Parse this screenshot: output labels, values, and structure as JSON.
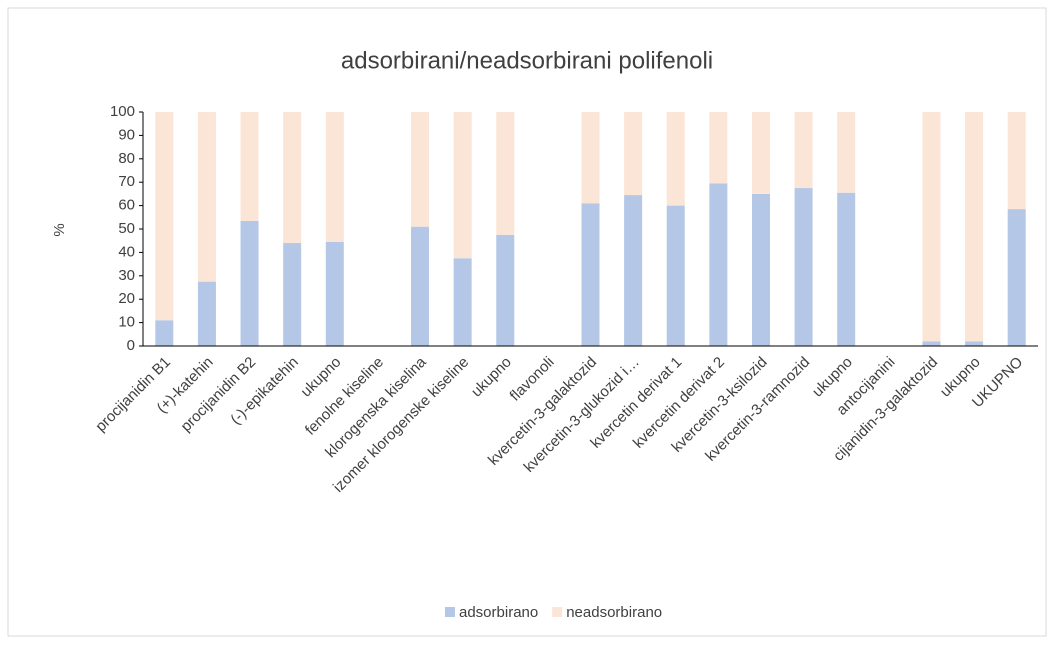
{
  "chart_data": {
    "type": "stacked_bar",
    "title": "adsorbirani/neadsorbirani polifenoli",
    "y_label": "%",
    "categories": [
      "procijanidin B1",
      "(+)-katehin",
      "procijanidin B2",
      "(-)-epikatehin",
      "ukupno",
      "fenolne kiseline",
      "klorogenska kiselina",
      "izomer klorogenske kiseline",
      "ukupno",
      "flavonoli",
      "kvercetin-3-galaktozid",
      "kvercetin-3-glukozid i…",
      "kvercetin derivat 1",
      "kvercetin derivat 2",
      "kvercetin-3-ksilozid",
      "kvercetin-3-ramnozid",
      "ukupno",
      "antocijanini",
      "cijanidin-3-galaktozid",
      "ukupno",
      "UKUPNO"
    ],
    "series": [
      {
        "name": "adsorbirano",
        "color": "#b4c7e7",
        "values": [
          11,
          27.5,
          53.5,
          44,
          44.5,
          null,
          51,
          37.5,
          47.5,
          null,
          61,
          64.5,
          60,
          69.5,
          65,
          67.5,
          65.5,
          null,
          2,
          2,
          58.5
        ]
      },
      {
        "name": "neadsorbirano",
        "color": "#fbe5d6",
        "values": [
          89,
          72.5,
          46.5,
          56,
          55.5,
          null,
          49,
          62.5,
          52.5,
          null,
          39,
          35.5,
          40,
          30.5,
          35,
          32.5,
          34.5,
          null,
          98,
          98,
          41.5
        ]
      }
    ],
    "ylim": [
      0,
      100
    ],
    "yticks": [
      0,
      10,
      20,
      30,
      40,
      50,
      60,
      70,
      80,
      90,
      100
    ],
    "legend": "bottom"
  }
}
